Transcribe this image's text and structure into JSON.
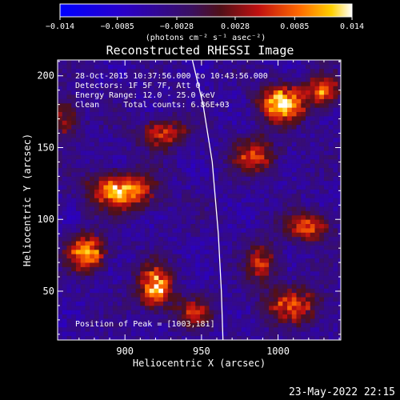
{
  "chart_data": {
    "type": "heatmap",
    "title": "Reconstructed RHESSI Image",
    "xlabel": "Heliocentric X (arcsec)",
    "ylabel": "Heliocentric Y (arcsec)",
    "xlim": [
      856,
      1041
    ],
    "ylim": [
      16,
      211
    ],
    "x_ticks": [
      900,
      950,
      1000
    ],
    "y_ticks": [
      50,
      100,
      150,
      200
    ],
    "colorbar": {
      "range": [
        -0.014,
        0.014
      ],
      "tick_values": [
        -0.014,
        -0.0085,
        -0.0028,
        0.0028,
        0.0085,
        0.014
      ],
      "tick_labels": [
        "−0.014",
        "−0.0085",
        "−0.0028",
        "0.0028",
        "0.0085",
        "0.014"
      ],
      "units_label": "(photons cm⁻² s⁻¹ asec⁻²)"
    },
    "limb": [
      [
        944,
        211
      ],
      [
        951,
        180
      ],
      [
        957,
        140
      ],
      [
        961,
        90
      ],
      [
        963,
        50
      ],
      [
        964,
        16
      ]
    ],
    "annotations": {
      "time_range": "28-Oct-2015 10:37:56.000 to 10:43:56.000",
      "detectors": "Detectors: 1F 5F 7F, Att 0",
      "energy_range": "Energy Range: 12.0 - 25.0 keV",
      "method_counts": "Clean     Total counts: 6.86E+03",
      "peak": "Position of Peak = [1003,181]"
    },
    "blobs": [
      {
        "x": 1003,
        "y": 181,
        "value": 0.014,
        "sx": 15,
        "sy": 12
      },
      {
        "x": 1030,
        "y": 190,
        "value": 0.009,
        "sx": 10,
        "sy": 10
      },
      {
        "x": 898,
        "y": 120,
        "value": 0.0125,
        "sx": 20,
        "sy": 12
      },
      {
        "x": 875,
        "y": 77,
        "value": 0.0115,
        "sx": 12,
        "sy": 12
      },
      {
        "x": 920,
        "y": 53,
        "value": 0.012,
        "sx": 11,
        "sy": 14
      },
      {
        "x": 925,
        "y": 160,
        "value": 0.0065,
        "sx": 15,
        "sy": 10
      },
      {
        "x": 1020,
        "y": 95,
        "value": 0.008,
        "sx": 14,
        "sy": 10
      },
      {
        "x": 1010,
        "y": 40,
        "value": 0.007,
        "sx": 18,
        "sy": 12
      },
      {
        "x": 985,
        "y": 145,
        "value": 0.0065,
        "sx": 14,
        "sy": 12
      },
      {
        "x": 990,
        "y": 70,
        "value": 0.0055,
        "sx": 10,
        "sy": 14
      },
      {
        "x": 945,
        "y": 35,
        "value": 0.005,
        "sx": 12,
        "sy": 10
      },
      {
        "x": 860,
        "y": 170,
        "value": 0.004,
        "sx": 10,
        "sy": 14
      }
    ],
    "background": -0.0045
  },
  "footer_date": "23-May-2022 22:15"
}
